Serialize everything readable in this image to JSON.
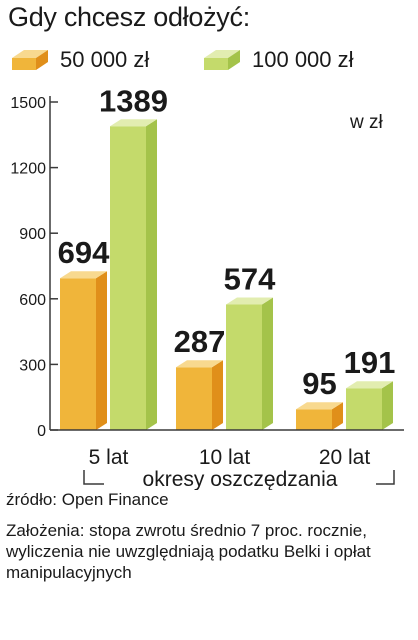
{
  "colors": {
    "series_a_front": "#f0b53a",
    "series_a_side": "#e08f1a",
    "series_a_top": "#f8d98f",
    "series_b_front": "#c4da6b",
    "series_b_side": "#a4c34a",
    "series_b_top": "#e2edb0",
    "axis": "#3a3a3a"
  },
  "chart_data": {
    "type": "bar",
    "title": "Gdy chcesz odłożyć:",
    "unit": "w zł",
    "categories": [
      "5 lat",
      "10 lat",
      "20 lat"
    ],
    "series": [
      {
        "name": "50 000 zł",
        "values": [
          694,
          287,
          95
        ]
      },
      {
        "name": "100 000 zł",
        "values": [
          1389,
          574,
          191
        ]
      }
    ],
    "xlabel": "okresy oszczędzania",
    "ylabel": "",
    "ylim": [
      0,
      1500
    ],
    "yticks": [
      0,
      300,
      600,
      900,
      1200,
      1500
    ],
    "grid": false,
    "legend_position": "top-left"
  },
  "footer": {
    "source": "źródło: Open Finance",
    "notes": "Założenia: stopa zwrotu średnio 7 proc. rocznie, wyliczenia nie uwzględniają podatku Belki i opłat manipulacyjnych"
  }
}
